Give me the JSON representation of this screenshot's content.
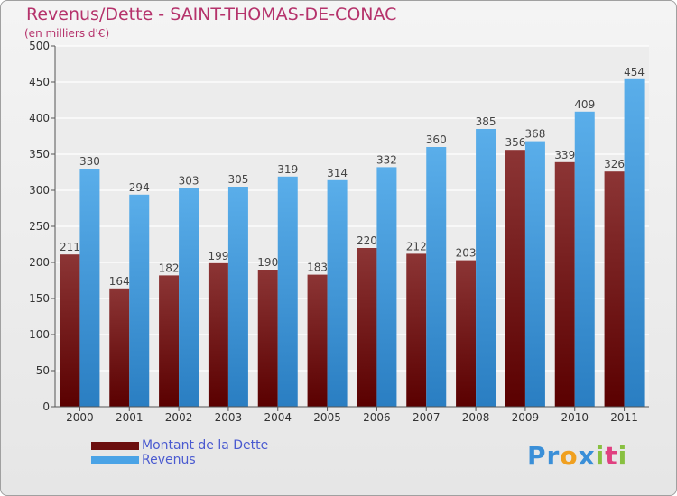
{
  "title": "Revenus/Dette - SAINT-THOMAS-DE-CONAC",
  "subtitle": "(en milliers d'€)",
  "logo": {
    "letters": [
      {
        "ch": "P",
        "color": "#3a8fd8"
      },
      {
        "ch": "r",
        "color": "#3a8fd8"
      },
      {
        "ch": "o",
        "color": "#f0a020"
      },
      {
        "ch": "x",
        "color": "#3a8fd8"
      },
      {
        "ch": "i",
        "color": "#88c040"
      },
      {
        "ch": "t",
        "color": "#e04080"
      },
      {
        "ch": "i",
        "color": "#88c040"
      }
    ]
  },
  "chart_data": {
    "type": "bar",
    "title": "Revenus/Dette - SAINT-THOMAS-DE-CONAC",
    "ylabel": "(en milliers d'€)",
    "xlabel": "",
    "categories": [
      "2000",
      "2001",
      "2002",
      "2003",
      "2004",
      "2005",
      "2006",
      "2007",
      "2008",
      "2009",
      "2010",
      "2011"
    ],
    "series": [
      {
        "name": "Montant de la Dette",
        "color_top": "#8c3535",
        "color_bottom": "#5a0000",
        "values": [
          211,
          164,
          182,
          199,
          190,
          183,
          220,
          212,
          203,
          356,
          339,
          326
        ]
      },
      {
        "name": "Revenus",
        "color_top": "#5aaeea",
        "color_bottom": "#2a7ec2",
        "values": [
          330,
          294,
          303,
          305,
          319,
          314,
          332,
          360,
          385,
          368,
          409,
          454
        ]
      }
    ],
    "ylim": [
      0,
      500
    ],
    "yticks": [
      0,
      50,
      100,
      150,
      200,
      250,
      300,
      350,
      400,
      450,
      500
    ],
    "grid": true,
    "legend_position": "bottom-left",
    "legend_colors": [
      "#6b0e0e",
      "#4aa3e6"
    ]
  }
}
